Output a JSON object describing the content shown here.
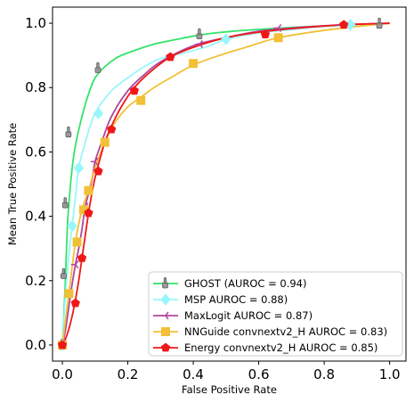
{
  "chart_data": {
    "type": "line",
    "title": "",
    "xlabel": "False Positive Rate",
    "ylabel": "Mean True Positive Rate",
    "xlim": [
      -0.03,
      1.05
    ],
    "ylim": [
      -0.05,
      1.05
    ],
    "xticks": [
      "0.0",
      "0.2",
      "0.4",
      "0.6",
      "0.8",
      "1.0"
    ],
    "yticks": [
      "0.0",
      "0.2",
      "0.4",
      "0.6",
      "0.8",
      "1.0"
    ],
    "grid": false,
    "legend_position": "bottom-right",
    "series": [
      {
        "name": "GHOST (AUROC = 0.94)",
        "color": "#33e36a",
        "marker": "thumbs-up",
        "marker_color": "#999999",
        "x": [
          0.0,
          0.005,
          0.01,
          0.015,
          0.02,
          0.03,
          0.04,
          0.06,
          0.08,
          0.1,
          0.13,
          0.17,
          0.22,
          0.28,
          0.35,
          0.43,
          0.52,
          0.62,
          0.72,
          0.82,
          0.9,
          0.97,
          1.0
        ],
        "y": [
          0.0,
          0.1,
          0.22,
          0.36,
          0.44,
          0.55,
          0.62,
          0.71,
          0.78,
          0.83,
          0.865,
          0.895,
          0.915,
          0.935,
          0.95,
          0.965,
          0.975,
          0.982,
          0.988,
          0.992,
          0.996,
          0.998,
          1.0
        ],
        "marker_x": [
          0.0,
          0.005,
          0.01,
          0.02,
          0.11,
          0.42,
          0.97
        ],
        "marker_y": [
          0.0,
          0.22,
          0.44,
          0.66,
          0.86,
          0.965,
          0.998
        ]
      },
      {
        "name": "MSP  AUROC = 0.88)",
        "color": "#99f6fb",
        "marker": "diamond",
        "marker_color": "#99f6fb",
        "x": [
          0.0,
          0.01,
          0.02,
          0.03,
          0.04,
          0.05,
          0.07,
          0.1,
          0.15,
          0.2,
          0.25,
          0.3,
          0.38,
          0.45,
          0.5,
          0.6,
          0.7,
          0.8,
          0.88,
          1.0
        ],
        "y": [
          0.0,
          0.16,
          0.28,
          0.37,
          0.46,
          0.55,
          0.63,
          0.72,
          0.79,
          0.83,
          0.865,
          0.89,
          0.91,
          0.93,
          0.95,
          0.97,
          0.98,
          0.99,
          0.995,
          1.0
        ],
        "marker_x": [
          0.0,
          0.03,
          0.05,
          0.11,
          0.5,
          0.88
        ],
        "marker_y": [
          0.0,
          0.37,
          0.55,
          0.72,
          0.95,
          0.995
        ]
      },
      {
        "name": "MaxLogit  AUROC = 0.87)",
        "color": "#b0469e",
        "marker": "tri-left",
        "marker_color": "#b0469e",
        "x": [
          0.0,
          0.01,
          0.02,
          0.03,
          0.04,
          0.05,
          0.06,
          0.07,
          0.09,
          0.1,
          0.12,
          0.15,
          0.2,
          0.25,
          0.3,
          0.4,
          0.5,
          0.6,
          0.7,
          0.8,
          0.9,
          1.0
        ],
        "y": [
          0.0,
          0.05,
          0.12,
          0.19,
          0.25,
          0.3,
          0.36,
          0.43,
          0.51,
          0.57,
          0.63,
          0.71,
          0.79,
          0.84,
          0.88,
          0.93,
          0.955,
          0.975,
          0.985,
          0.992,
          0.997,
          1.0
        ],
        "marker_x": [
          0.0,
          0.04,
          0.07,
          0.1,
          0.42,
          0.66,
          0.85
        ],
        "marker_y": [
          0.0,
          0.25,
          0.43,
          0.57,
          0.935,
          0.985,
          0.995
        ]
      },
      {
        "name": "NNGuide convnextv2_H  AUROC = 0.83)",
        "color": "#f2c037",
        "marker": "square",
        "marker_color": "#f2c037",
        "x": [
          0.0,
          0.01,
          0.02,
          0.04,
          0.06,
          0.08,
          0.1,
          0.13,
          0.16,
          0.2,
          0.24,
          0.28,
          0.33,
          0.4,
          0.48,
          0.56,
          0.66,
          0.78,
          0.9,
          1.0
        ],
        "y": [
          0.0,
          0.08,
          0.16,
          0.32,
          0.42,
          0.48,
          0.55,
          0.63,
          0.69,
          0.74,
          0.77,
          0.8,
          0.83,
          0.87,
          0.9,
          0.925,
          0.955,
          0.975,
          0.99,
          1.0
        ],
        "marker_x": [
          0.0,
          0.02,
          0.045,
          0.065,
          0.08,
          0.13,
          0.24,
          0.4,
          0.66
        ],
        "marker_y": [
          0.0,
          0.16,
          0.32,
          0.42,
          0.48,
          0.63,
          0.76,
          0.875,
          0.955
        ]
      },
      {
        "name": "Energy convnextv2_H  AUROC = 0.85)",
        "color": "#ef1818",
        "marker": "pentagon",
        "marker_color": "#ef1818",
        "x": [
          0.0,
          0.01,
          0.02,
          0.03,
          0.04,
          0.05,
          0.06,
          0.07,
          0.08,
          0.09,
          0.1,
          0.11,
          0.13,
          0.15,
          0.18,
          0.22,
          0.27,
          0.33,
          0.4,
          0.5,
          0.6,
          0.72,
          0.86,
          1.0
        ],
        "y": [
          0.0,
          0.02,
          0.05,
          0.09,
          0.14,
          0.2,
          0.27,
          0.34,
          0.41,
          0.47,
          0.52,
          0.56,
          0.63,
          0.68,
          0.74,
          0.8,
          0.85,
          0.895,
          0.925,
          0.955,
          0.972,
          0.985,
          0.995,
          1.0
        ],
        "marker_x": [
          0.0,
          0.04,
          0.06,
          0.08,
          0.11,
          0.15,
          0.22,
          0.33,
          0.62,
          0.86
        ],
        "marker_y": [
          0.0,
          0.13,
          0.27,
          0.41,
          0.54,
          0.67,
          0.79,
          0.895,
          0.965,
          0.995
        ]
      }
    ]
  }
}
